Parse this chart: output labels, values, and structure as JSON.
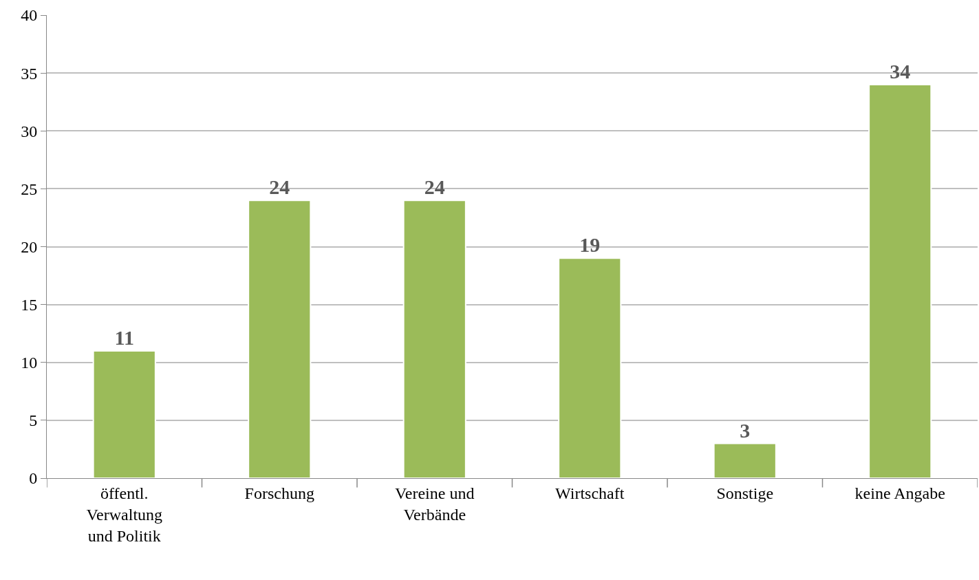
{
  "chart_data": {
    "type": "bar",
    "categories": [
      "öffentl. Verwaltung und Politik",
      "Forschung",
      "Vereine und Verbände",
      "Wirtschaft",
      "Sonstige",
      "keine Angabe"
    ],
    "values": [
      11,
      24,
      24,
      19,
      3,
      34
    ],
    "color": "#9bbb59",
    "ylim": [
      0,
      40
    ],
    "yticks": [
      0,
      5,
      10,
      15,
      20,
      25,
      30,
      35,
      40
    ],
    "grid": "y",
    "data_labels": true
  }
}
